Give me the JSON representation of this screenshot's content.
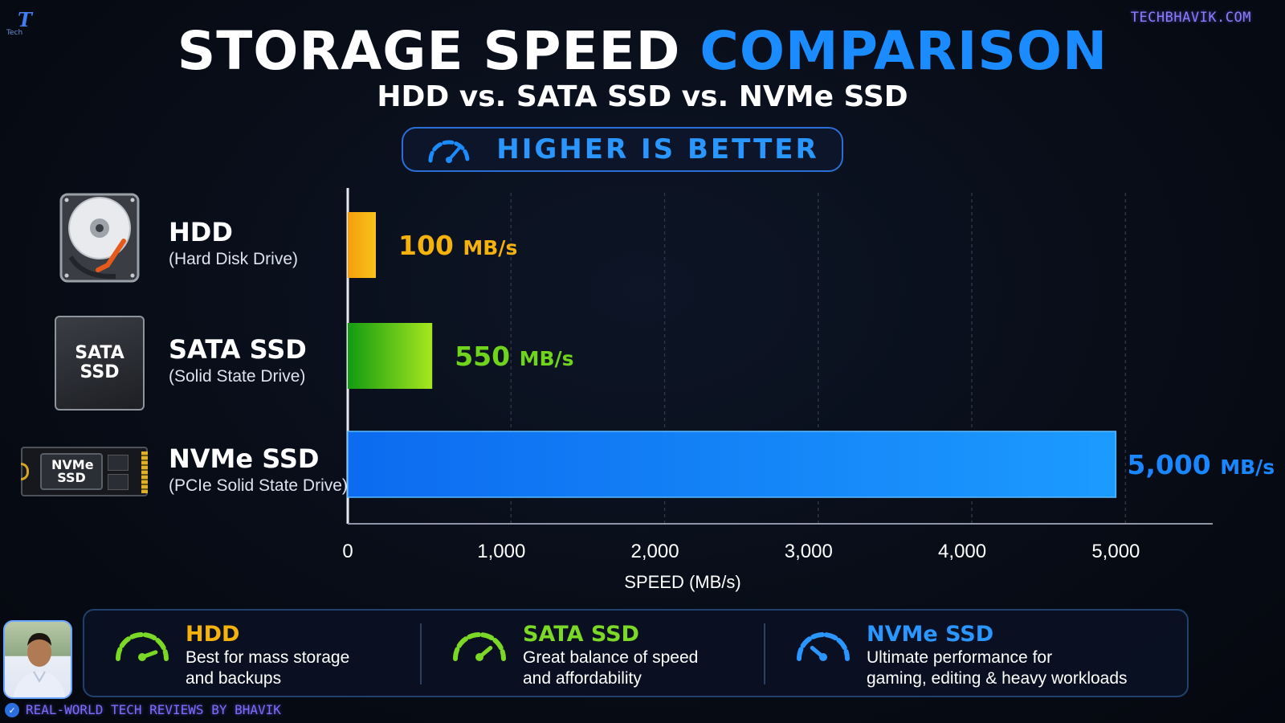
{
  "branding": {
    "logo_letter": "T",
    "logo_sub": "Tech",
    "site": "TECHBHAVIK.COM",
    "footer": "REAL-WORLD TECH REVIEWS BY BHAVIK"
  },
  "header": {
    "title_part1": "STORAGE SPEED",
    "title_part2": "COMPARISON",
    "subtitle": "HDD vs. SATA SSD vs. NVMe SSD",
    "badge": "HIGHER IS BETTER",
    "badge_icon": "speedometer-icon"
  },
  "drives": [
    {
      "name": "HDD",
      "desc": "(Hard Disk Drive)",
      "icon": "hard-disk-icon",
      "label_chip": ""
    },
    {
      "name": "SATA SSD",
      "desc": "(Solid State Drive)",
      "icon": "sata-ssd-icon",
      "label_chip": "SATA SSD"
    },
    {
      "name": "NVMe SSD",
      "desc": "(PCIe Solid State Drive)",
      "icon": "nvme-ssd-icon",
      "label_chip": "NVMe SSD"
    }
  ],
  "chart_data": {
    "type": "bar",
    "orientation": "horizontal",
    "categories": [
      "HDD",
      "SATA SSD",
      "NVMe SSD"
    ],
    "values": [
      100,
      550,
      5000
    ],
    "value_labels": [
      {
        "number": "100",
        "unit": "MB/s"
      },
      {
        "number": "550",
        "unit": "MB/s"
      },
      {
        "number": "5,000",
        "unit": "MB/s"
      }
    ],
    "colors": [
      "#f5b10c",
      "#6fd41c",
      "#1a86ff"
    ],
    "xlabel": "SPEED (MB/s)",
    "xlim": [
      0,
      5500
    ],
    "xticks": [
      0,
      1000,
      2000,
      3000,
      4000,
      5000
    ],
    "xtick_labels": [
      "0",
      "1,000",
      "2,000",
      "3,000",
      "4,000",
      "5,000"
    ],
    "grid": "vertical dashed"
  },
  "summary": [
    {
      "title": "HDD",
      "line1": "Best for mass storage",
      "line2": "and backups",
      "color": "#f5b10c",
      "icon": "gauge-low-icon"
    },
    {
      "title": "SATA SSD",
      "line1": "Great balance of speed",
      "line2": "and affordability",
      "color": "#7bd827",
      "icon": "gauge-mid-icon"
    },
    {
      "title": "NVMe SSD",
      "line1": "Ultimate performance for",
      "line2": "gaming, editing & heavy workloads",
      "color": "#2a96ff",
      "icon": "gauge-high-icon"
    }
  ]
}
